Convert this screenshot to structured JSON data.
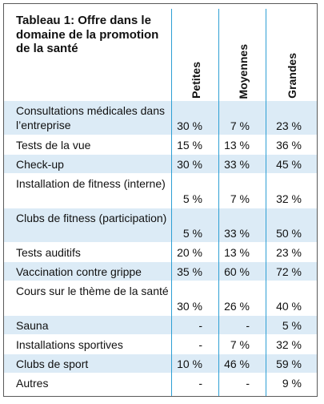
{
  "title": "Tableau 1: Offre dans le domaine de la promotion de la santé",
  "columns": [
    "Petites",
    "Moyennes",
    "Grandes"
  ],
  "rows": [
    {
      "label": "Consultations médicales dans l’entreprise",
      "values": [
        "30 %",
        "7 %",
        "23 %"
      ]
    },
    {
      "label": "Tests de la vue",
      "values": [
        "15 %",
        "13 %",
        "36 %"
      ]
    },
    {
      "label": "Check-up",
      "values": [
        "30 %",
        "33 %",
        "45 %"
      ]
    },
    {
      "label": "Installation de fitness (interne)",
      "values": [
        "5 %",
        "7 %",
        "32 %"
      ]
    },
    {
      "label": "Clubs de fitness (participation)",
      "values": [
        "5 %",
        "33 %",
        "50 %"
      ]
    },
    {
      "label": "Tests auditifs",
      "values": [
        "20 %",
        "13 %",
        "23 %"
      ]
    },
    {
      "label": "Vaccination contre grippe",
      "values": [
        "35 %",
        "60 %",
        "72 %"
      ]
    },
    {
      "label": "Cours sur le thème de la santé",
      "values": [
        "30 %",
        "26 %",
        "40 %"
      ]
    },
    {
      "label": "Sauna",
      "values": [
        "-",
        "-",
        "5 %"
      ]
    },
    {
      "label": "Installations sportives",
      "values": [
        "-",
        "7 %",
        "32 %"
      ]
    },
    {
      "label": "Clubs de sport",
      "values": [
        "10 %",
        "46 %",
        "59 %"
      ]
    },
    {
      "label": "Autres",
      "values": [
        "-",
        "-",
        "9 %"
      ]
    }
  ],
  "colors": {
    "row_shade": "#dcebf6",
    "column_rule": "#2e9fd4",
    "frame": "#5a5a5a"
  }
}
